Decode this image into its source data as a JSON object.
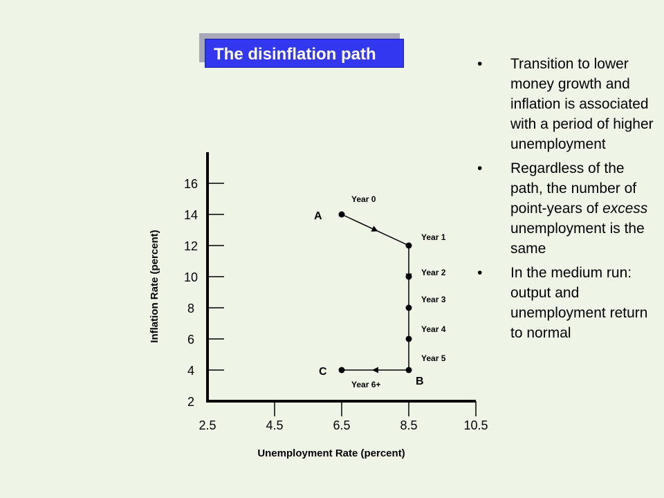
{
  "title": "The disinflation path",
  "bullets": [
    {
      "parts": [
        {
          "text": "Transition to lower money growth and inflation is associated with a period of higher unemployment",
          "italic": false
        }
      ]
    },
    {
      "parts": [
        {
          "text": "Regardless of the path, the number of point-years of ",
          "italic": false
        },
        {
          "text": "excess",
          "italic": true
        },
        {
          "text": " unemployment is the same",
          "italic": false
        }
      ]
    },
    {
      "parts": [
        {
          "text": "In the medium run: output and unemployment return to normal",
          "italic": false
        }
      ]
    }
  ],
  "bullet_glyph": "•",
  "chart_data": {
    "type": "line",
    "xlabel": "Unemployment Rate (percent)",
    "ylabel": "Inflation Rate (percent)",
    "x_ticks": [
      "2.5",
      "4.5",
      "6.5",
      "8.5",
      "10.5"
    ],
    "y_ticks": [
      "2",
      "4",
      "6",
      "8",
      "10",
      "12",
      "14",
      "16"
    ],
    "xlim": [
      2.5,
      10.5
    ],
    "ylim": [
      2,
      18
    ],
    "points": [
      {
        "label": "Year 0",
        "x": 6.5,
        "y": 14
      },
      {
        "label": "Year 1",
        "x": 8.5,
        "y": 12
      },
      {
        "label": "Year 2",
        "x": 8.5,
        "y": 10
      },
      {
        "label": "Year 3",
        "x": 8.5,
        "y": 8
      },
      {
        "label": "Year 4",
        "x": 8.5,
        "y": 6
      },
      {
        "label": "Year 5",
        "x": 8.5,
        "y": 4
      },
      {
        "label": "Year 6+",
        "x": 6.5,
        "y": 4
      }
    ],
    "named_points": [
      {
        "label": "A",
        "x": 6.5,
        "y": 14
      },
      {
        "label": "B",
        "x": 8.5,
        "y": 4
      },
      {
        "label": "C",
        "x": 6.5,
        "y": 4
      }
    ],
    "grid": false,
    "color": "#000000"
  }
}
